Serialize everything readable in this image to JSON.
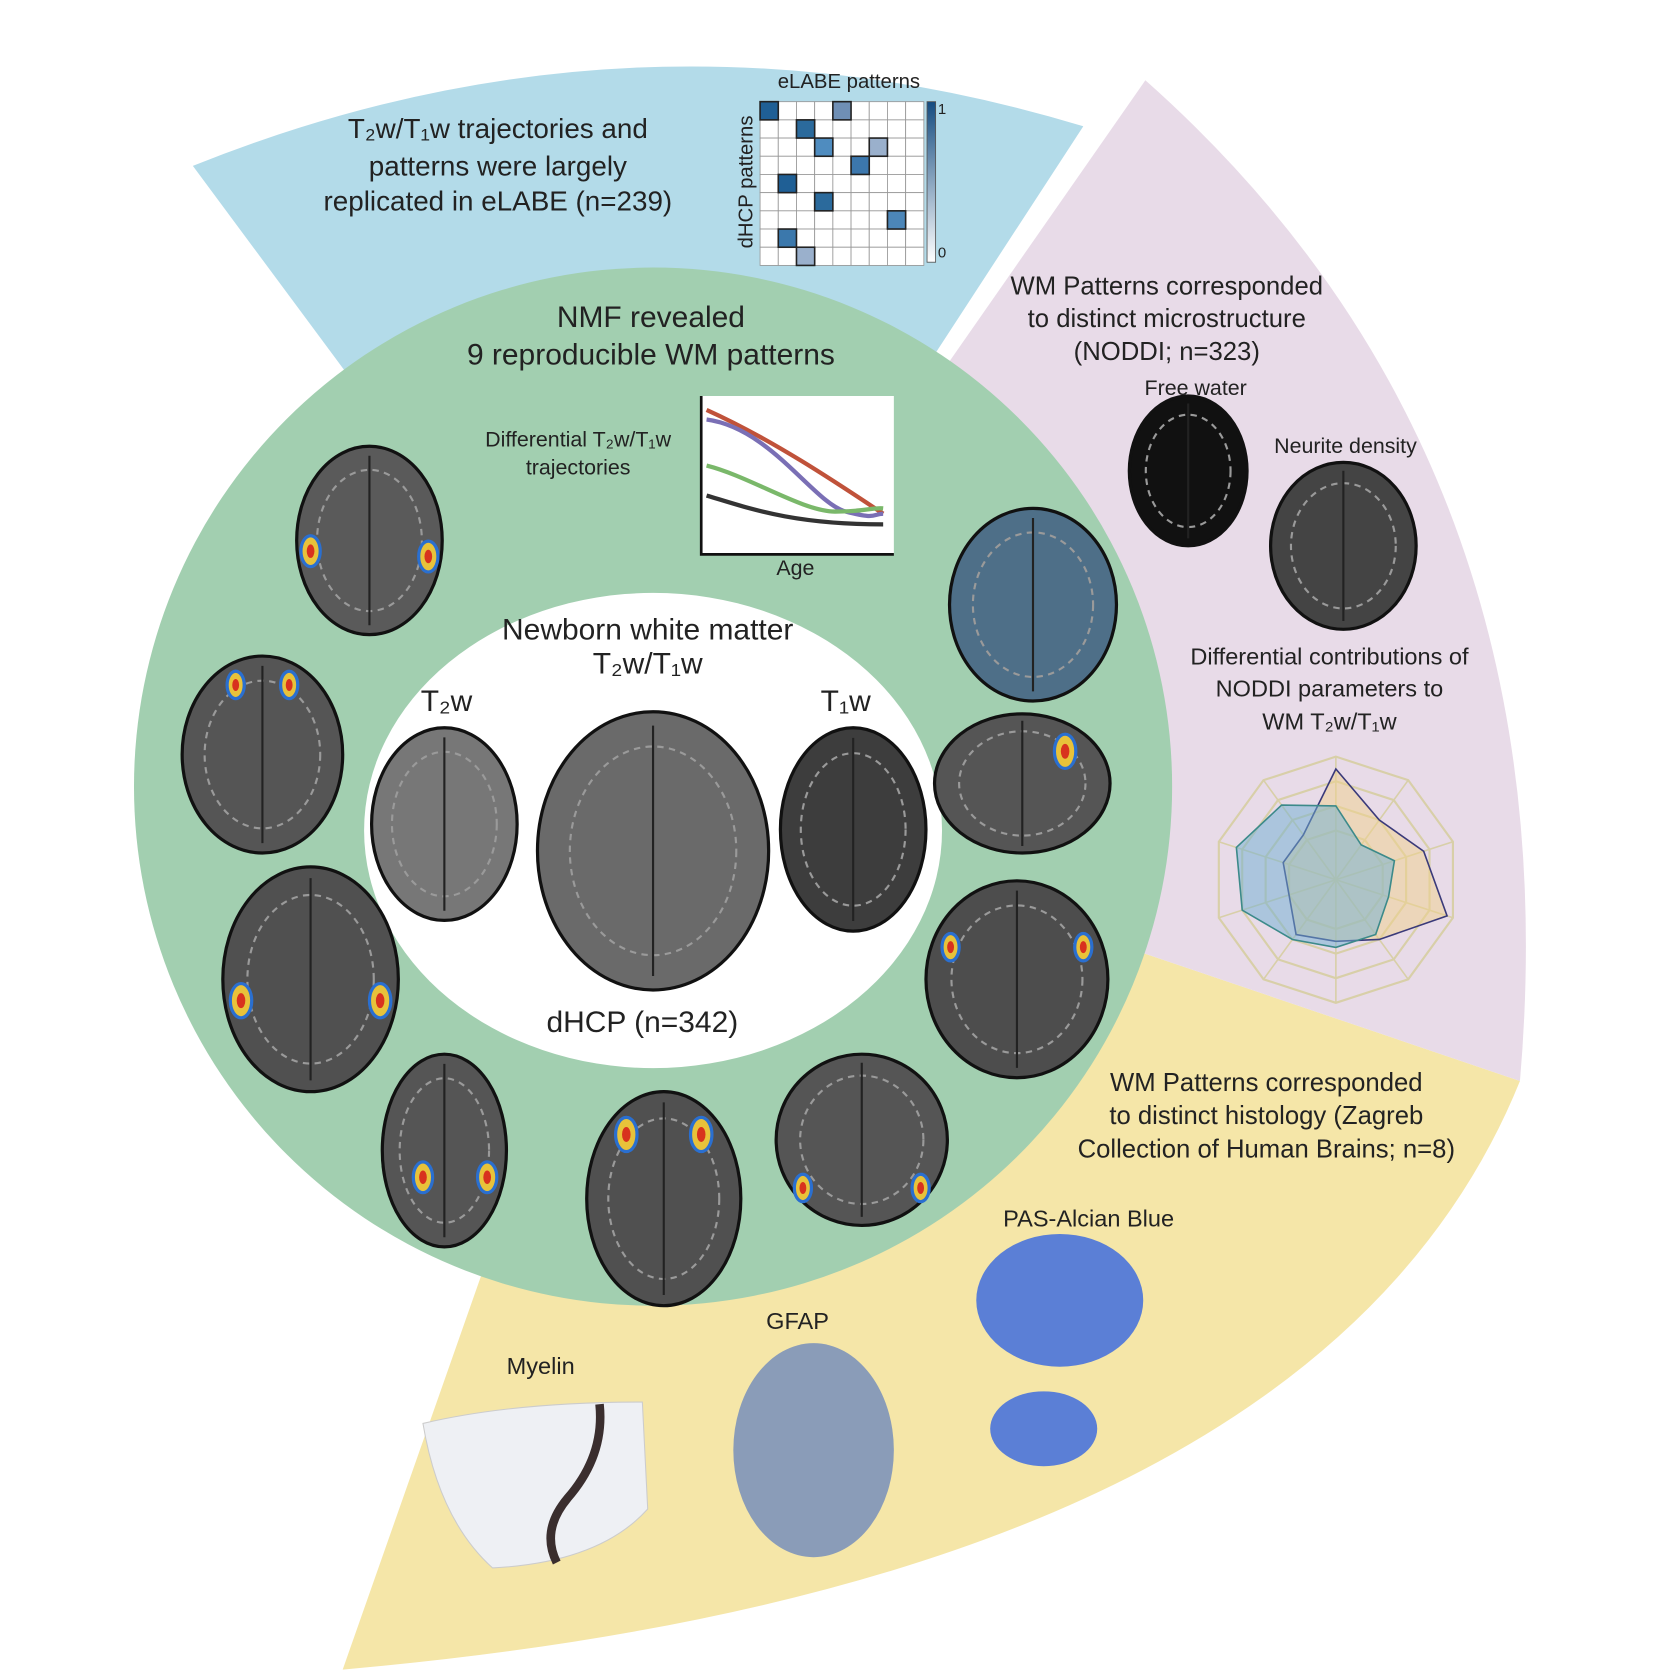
{
  "replication": {
    "lines": [
      "T₂w/T₁w trajectories and",
      "patterns were largely",
      "replicated in eLABE (n=239)"
    ],
    "matrix": {
      "x_label": "eLABE patterns",
      "y_label": "dHCP patterns",
      "colorbar_max": "1",
      "colorbar_min": "0"
    }
  },
  "nmf": {
    "title_lines": [
      "NMF revealed",
      "9 reproducible WM patterns"
    ],
    "chart": {
      "label_lines": [
        "Differential T₂w/T₁w",
        "trajectories"
      ],
      "x_label": "Age"
    }
  },
  "center": {
    "title_lines": [
      "Newborn white matter",
      "T₂w/T₁w"
    ],
    "left_label": "T₂w",
    "right_label": "T₁w",
    "cohort": "dHCP (n=342)"
  },
  "microstructure": {
    "lines": [
      "WM Patterns corresponded",
      "to distinct microstructure",
      "(NODDI; n=323)"
    ],
    "free_water": "Free water",
    "neurite_density": "Neurite density",
    "radar_lines": [
      "Differential contributions of",
      "NODDI parameters to",
      "WM T₂w/T₁w"
    ]
  },
  "histology": {
    "lines": [
      "WM Patterns corresponded",
      "to distinct histology (Zagreb",
      "Collection of Human Brains; n=8)"
    ],
    "pas": "PAS-Alcian Blue",
    "gfap": "GFAP",
    "myelin": "Myelin"
  }
}
